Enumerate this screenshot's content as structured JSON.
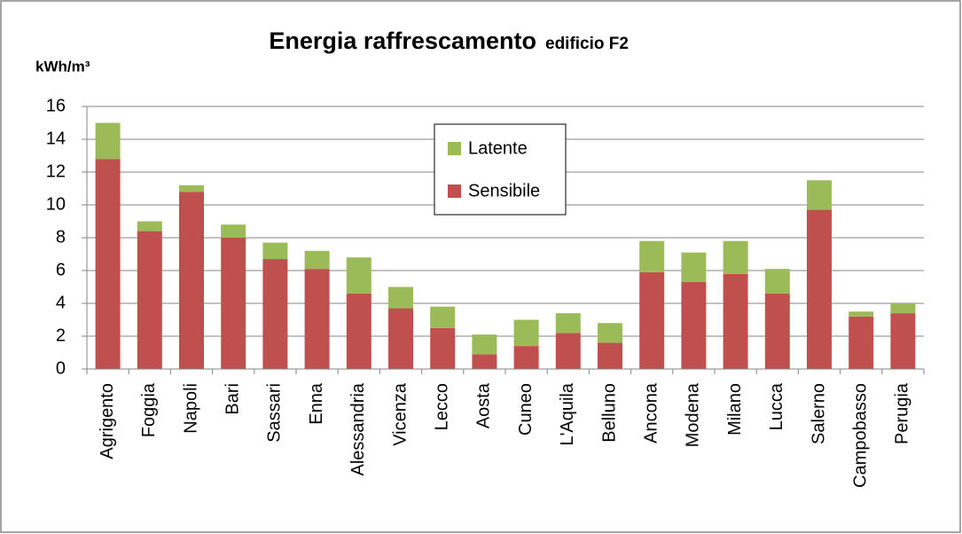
{
  "chart_data": {
    "type": "bar",
    "stacked": true,
    "title": "Energia raffrescamento",
    "subtitle": "edificio F2",
    "y_label": "kWh/m³",
    "categories": [
      "Agrigento",
      "Foggia",
      "Napoli",
      "Bari",
      "Sassari",
      "Enna",
      "Alessandria",
      "Vicenza",
      "Lecco",
      "Aosta",
      "Cuneo",
      "L'Aquila",
      "Belluno",
      "Ancona",
      "Modena",
      "Milano",
      "Lucca",
      "Salerno",
      "Campobasso",
      "Perugia"
    ],
    "series": [
      {
        "name": "Sensibile",
        "color": "#c0504d",
        "values": [
          12.8,
          8.4,
          10.8,
          8.0,
          6.7,
          6.1,
          4.6,
          3.7,
          2.5,
          0.9,
          1.4,
          2.2,
          1.6,
          5.9,
          5.3,
          5.8,
          4.6,
          9.7,
          3.2,
          3.4
        ]
      },
      {
        "name": "Latente",
        "color": "#9bbb59",
        "values": [
          2.2,
          0.6,
          0.4,
          0.8,
          1.0,
          1.1,
          2.2,
          1.3,
          1.3,
          1.2,
          1.6,
          1.2,
          1.2,
          1.9,
          1.8,
          2.0,
          1.5,
          1.8,
          0.3,
          0.6
        ]
      }
    ],
    "ylim": [
      0,
      16
    ],
    "yticks": [
      0,
      2,
      4,
      6,
      8,
      10,
      12,
      14,
      16
    ],
    "grid": true
  }
}
